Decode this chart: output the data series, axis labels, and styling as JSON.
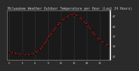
{
  "title": "Milwaukee Weather Outdoor Temperature per Hour (Last 24 Hours)",
  "hours": [
    0,
    1,
    2,
    3,
    4,
    5,
    6,
    7,
    8,
    9,
    10,
    11,
    12,
    13,
    14,
    15,
    16,
    17,
    18,
    19,
    20,
    21,
    22,
    23
  ],
  "temps": [
    29,
    28.5,
    28,
    27.8,
    27.5,
    27.8,
    28.5,
    30,
    32.5,
    36,
    39,
    42,
    44.5,
    46,
    47.5,
    47.8,
    47.2,
    45,
    43,
    40,
    37,
    35,
    33.5,
    32
  ],
  "line_color": "#ff0000",
  "marker_color": "#000000",
  "bg_color": "#1a1a1a",
  "grid_color": "#555555",
  "title_color": "#cccccc",
  "tick_color": "#cccccc",
  "ylim": [
    25,
    50
  ],
  "yticks": [
    27,
    32,
    37,
    42,
    47
  ],
  "ytick_labels": [
    "27",
    "32",
    "37",
    "42",
    "47"
  ],
  "ylabel_fontsize": 3.0,
  "xlabel_fontsize": 2.8,
  "title_fontsize": 3.5,
  "vline_hours": [
    0,
    3,
    6,
    9,
    12,
    15,
    18,
    21,
    23
  ],
  "outer_bg": "#2a2a2a",
  "border_color": "#888888"
}
